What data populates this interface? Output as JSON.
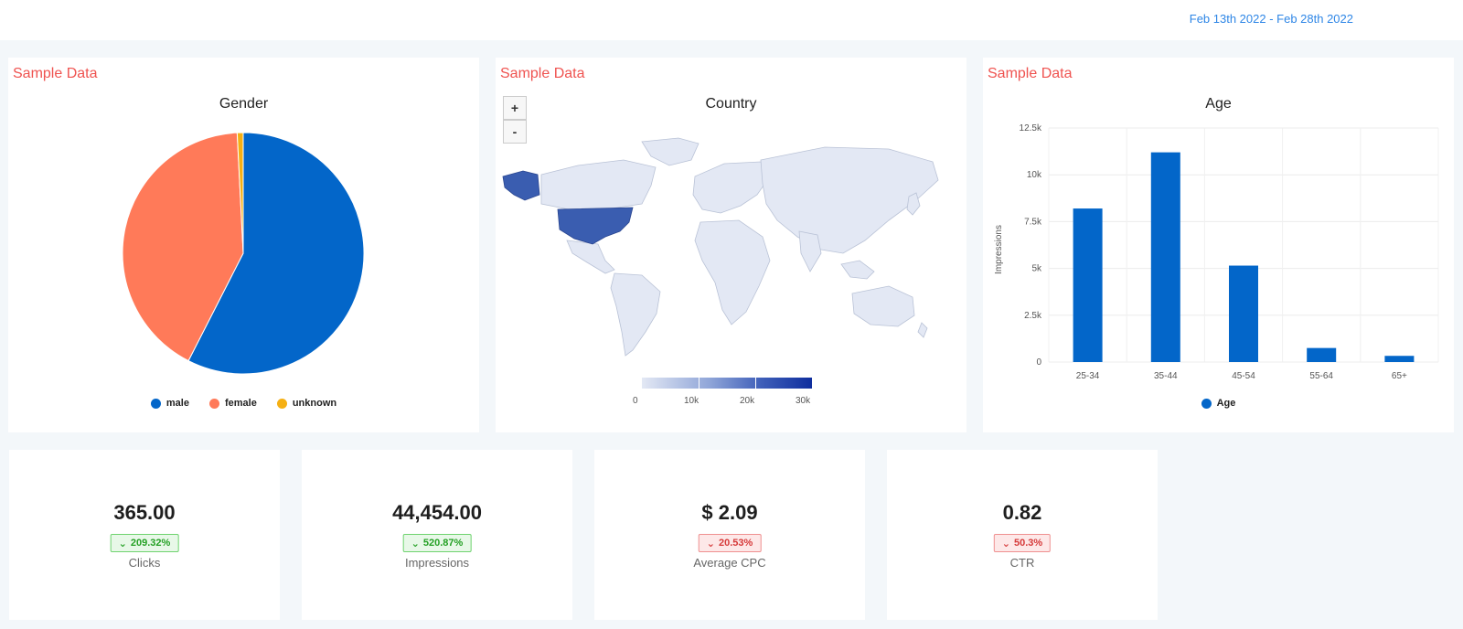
{
  "header": {
    "date_range": "Feb 13th 2022 - Feb 28th 2022"
  },
  "colors": {
    "blue": "#0366c9",
    "orange": "#ff7a59",
    "yellow": "#f5b014",
    "map_base": "#e3e8f4",
    "map_highlight": "#3a5db0"
  },
  "gender_card": {
    "label": "Sample Data",
    "title": "Gender",
    "legend": [
      {
        "name": "male",
        "color": "#0366c9"
      },
      {
        "name": "female",
        "color": "#ff7a59"
      },
      {
        "name": "unknown",
        "color": "#f5b014"
      }
    ]
  },
  "country_card": {
    "label": "Sample Data",
    "title": "Country",
    "zoom_in": "+",
    "zoom_out": "-",
    "colorbar_ticks": [
      "0",
      "10k",
      "20k",
      "30k"
    ]
  },
  "age_card": {
    "label": "Sample Data",
    "title": "Age",
    "ylabel": "Impressions",
    "yticks": [
      "0",
      "2.5k",
      "5k",
      "7.5k",
      "10k",
      "12.5k"
    ],
    "legend": "Age"
  },
  "chart_data": [
    {
      "type": "pie",
      "title": "Gender",
      "categories": [
        "male",
        "female",
        "unknown"
      ],
      "values": [
        57.5,
        41.7,
        0.8
      ]
    },
    {
      "type": "bar",
      "title": "Age",
      "categories": [
        "25-34",
        "35-44",
        "45-54",
        "55-64",
        "65+"
      ],
      "series": [
        {
          "name": "Age",
          "values": [
            8200,
            11200,
            5150,
            750,
            330
          ]
        }
      ],
      "ylabel": "Impressions",
      "ylim": [
        0,
        12500
      ],
      "grid": true,
      "legend": "bottom"
    }
  ],
  "kpis": [
    {
      "value": "365.00",
      "change": "209.32%",
      "trend": "green",
      "label": "Clicks"
    },
    {
      "value": "44,454.00",
      "change": "520.87%",
      "trend": "green",
      "label": "Impressions"
    },
    {
      "value": "$ 2.09",
      "change": "20.53%",
      "trend": "red",
      "label": "Average CPC"
    },
    {
      "value": "0.82",
      "change": "50.3%",
      "trend": "red",
      "label": "CTR"
    }
  ]
}
